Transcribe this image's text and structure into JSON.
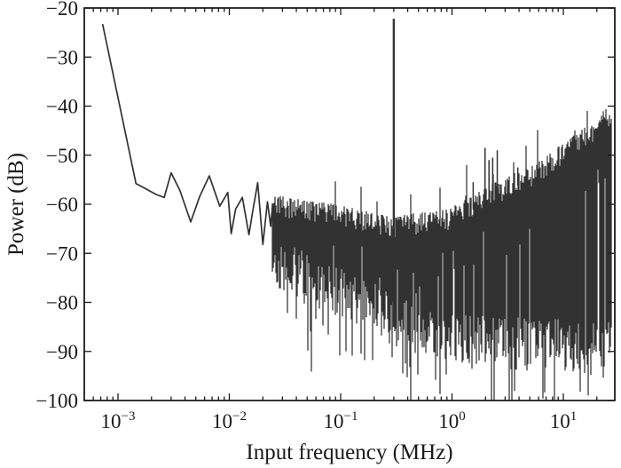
{
  "figure": {
    "colors": {
      "trace": "#323232",
      "axis": "#1a1a1a",
      "background": "#ffffff"
    }
  },
  "chart_data": {
    "type": "line",
    "subtype": "power-spectrum-fft",
    "title": "",
    "xlabel": "Input frequency (MHz)",
    "ylabel": "Power (dB)",
    "x_scale": "log",
    "xlim_mhz": [
      0.0005,
      29
    ],
    "ylim_db": [
      -100,
      -20
    ],
    "grid": false,
    "legend": null,
    "x_ticks": [
      {
        "base": "10",
        "exp": "−3",
        "logf": -3
      },
      {
        "base": "10",
        "exp": "−2",
        "logf": -2
      },
      {
        "base": "10",
        "exp": "−1",
        "logf": -1
      },
      {
        "base": "10",
        "exp": "0",
        "logf": 0
      },
      {
        "base": "10",
        "exp": "1",
        "logf": 1
      }
    ],
    "y_ticks": [
      {
        "label": "−20",
        "db": -20
      },
      {
        "label": "−30",
        "db": -30
      },
      {
        "label": "−40",
        "db": -40
      },
      {
        "label": "−50",
        "db": -50
      },
      {
        "label": "−60",
        "db": -60
      },
      {
        "label": "−70",
        "db": -70
      },
      {
        "label": "−80",
        "db": -80
      },
      {
        "label": "−90",
        "db": -90
      },
      {
        "label": "−100",
        "db": -100
      }
    ],
    "signal_peak": {
      "f_mhz": 0.3,
      "power_db": -22.2
    },
    "spurs_f_db": [
      [
        1.55,
        -55.5
      ],
      [
        1.98,
        -48.5
      ],
      [
        2.15,
        -51.0
      ],
      [
        2.32,
        -50.5
      ],
      [
        2.55,
        -49.0
      ],
      [
        3.9,
        -52.5
      ]
    ],
    "low_freq_points_f_db": [
      [
        0.00073,
        -23.4
      ],
      [
        0.00145,
        -55.8
      ],
      [
        0.0017,
        -56.6
      ],
      [
        0.0022,
        -58.0
      ],
      [
        0.0026,
        -58.6
      ],
      [
        0.003,
        -53.6
      ],
      [
        0.0036,
        -57.2
      ],
      [
        0.0045,
        -63.6
      ],
      [
        0.0054,
        -58.5
      ],
      [
        0.0066,
        -54.2
      ],
      [
        0.0082,
        -60.4
      ],
      [
        0.0097,
        -57.6
      ],
      [
        0.0104,
        -66.0
      ],
      [
        0.0114,
        -61.0
      ],
      [
        0.0131,
        -58.6
      ],
      [
        0.015,
        -66.2
      ],
      [
        0.0162,
        -61.5
      ],
      [
        0.018,
        -55.6
      ],
      [
        0.02,
        -68.2
      ],
      [
        0.022,
        -59.5
      ],
      [
        0.0235,
        -64.5
      ],
      [
        0.0245,
        -60.0
      ]
    ],
    "noise_band": {
      "f_start_mhz": 0.0245,
      "f_end_mhz": 27,
      "top_envelope_log10f_db": [
        [
          -1.62,
          -59.5
        ],
        [
          -1.35,
          -60.5
        ],
        [
          -1.05,
          -61.5
        ],
        [
          -0.75,
          -63.0
        ],
        [
          -0.52,
          -64.0
        ],
        [
          -0.3,
          -63.2
        ],
        [
          -0.05,
          -62.5
        ],
        [
          0.2,
          -59.5
        ],
        [
          0.35,
          -57.5
        ],
        [
          0.55,
          -55.2
        ],
        [
          0.78,
          -52.8
        ],
        [
          1.0,
          -49.0
        ],
        [
          1.18,
          -46.0
        ],
        [
          1.3,
          -43.8
        ],
        [
          1.38,
          -42.0
        ],
        [
          1.45,
          -42.8
        ]
      ],
      "bottom_envelope_log10f_db": [
        [
          -1.62,
          -72.0
        ],
        [
          -1.4,
          -74.5
        ],
        [
          -1.1,
          -77.0
        ],
        [
          -0.8,
          -80.0
        ],
        [
          -0.5,
          -83.0
        ],
        [
          -0.2,
          -85.5
        ],
        [
          0.05,
          -86.5
        ],
        [
          0.35,
          -87.5
        ],
        [
          0.7,
          -88.0
        ],
        [
          1.05,
          -88.5
        ],
        [
          1.3,
          -89.0
        ],
        [
          1.45,
          -89.0
        ]
      ],
      "floor_min_db": -100,
      "seed": 11
    }
  }
}
